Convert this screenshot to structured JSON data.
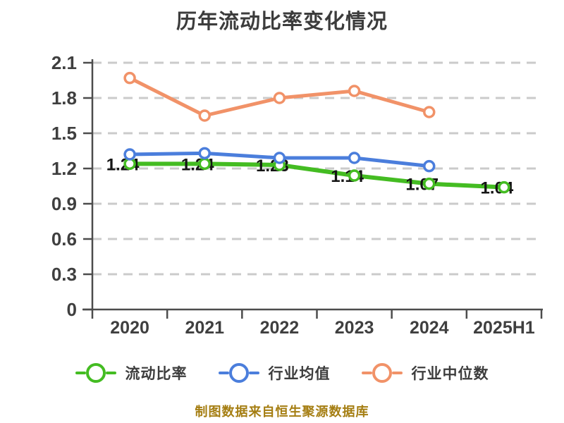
{
  "title": "历年流动比率变化情况",
  "footer": {
    "text": "制图数据来自恒生聚源数据库"
  },
  "colors": {
    "background": "#ffffff",
    "title": "#3c3c3c",
    "axis": "#4c4c4c",
    "tick_label": "#3f3f3f",
    "grid": "#cbcbcb",
    "data_label": "#151515",
    "legend_text": "#3d3d3d",
    "footer_text": "#a57e12"
  },
  "chart_data": {
    "type": "line",
    "title": "历年流动比率变化情况",
    "categories": [
      "2020",
      "2021",
      "2022",
      "2023",
      "2024",
      "2025H1"
    ],
    "series": [
      {
        "name": "流动比率",
        "color": "#44bc22",
        "marker": "circle-white-fill",
        "show_value_labels": true,
        "values": [
          1.24,
          1.24,
          1.23,
          1.14,
          1.07,
          1.04
        ]
      },
      {
        "name": "行业均值",
        "color": "#4b7edc",
        "marker": "circle-white-fill",
        "show_value_labels": false,
        "values": [
          1.32,
          1.33,
          1.29,
          1.29,
          1.22,
          null
        ]
      },
      {
        "name": "行业中位数",
        "color": "#f19268",
        "marker": "circle-white-fill",
        "show_value_labels": false,
        "values": [
          1.97,
          1.65,
          1.8,
          1.86,
          1.68,
          null
        ]
      }
    ],
    "value_labels": [
      "1.24",
      "1.24",
      "1.23",
      "1.14",
      "1.07",
      "1.04"
    ],
    "xlabel": "",
    "ylabel": "",
    "ylim": [
      0,
      2.1
    ],
    "yticks": [
      0,
      0.3,
      0.6,
      0.9,
      1.2,
      1.5,
      1.8,
      2.1
    ],
    "ytick_labels": [
      "0",
      "0.3",
      "0.6",
      "0.9",
      "1.2",
      "1.5",
      "1.8",
      "2.1"
    ],
    "grid": "horizontal-dashed",
    "legend_position": "bottom"
  }
}
